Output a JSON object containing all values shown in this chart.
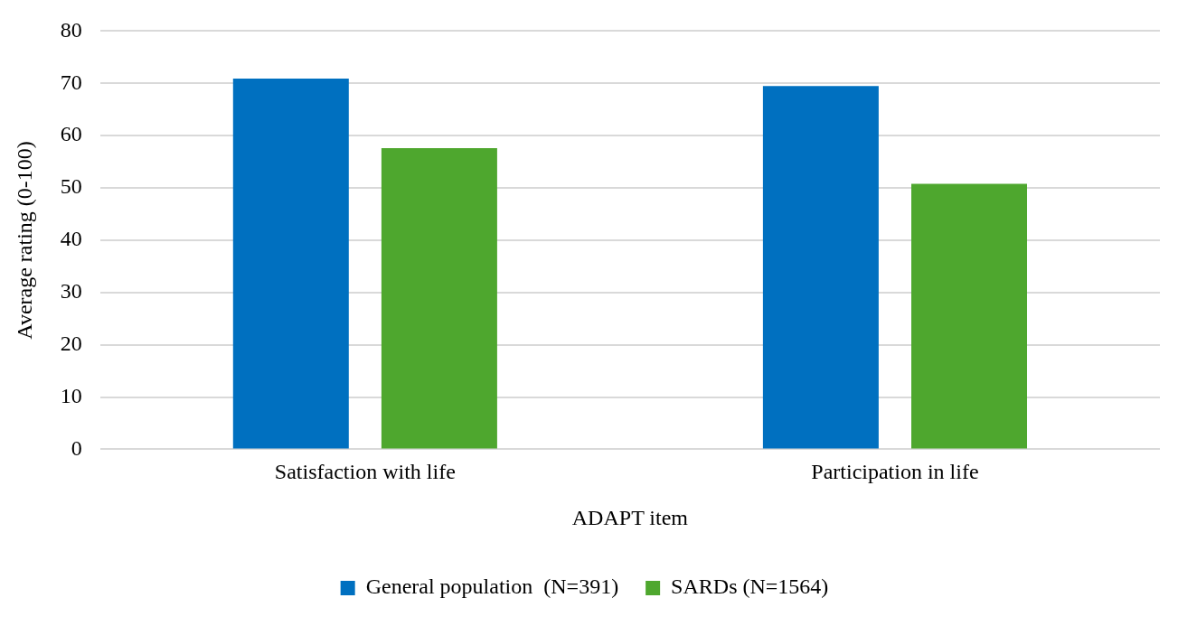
{
  "chart_data": {
    "type": "bar",
    "xlabel": "ADAPT item",
    "ylabel": "Average rating (0-100)",
    "categories": [
      "Satisfaction with life",
      "Participation in life"
    ],
    "series": [
      {
        "name": "General population  (N=391)",
        "color": "#0070c0",
        "values": [
          70.9,
          69.5
        ]
      },
      {
        "name": "SARDs (N=1564)",
        "color": "#4ea72e",
        "values": [
          57.6,
          50.8
        ]
      }
    ],
    "ylim": [
      0,
      80
    ],
    "yticks": [
      0,
      10,
      20,
      30,
      40,
      50,
      60,
      70,
      80
    ],
    "grid": "y",
    "legend": "bottom"
  }
}
